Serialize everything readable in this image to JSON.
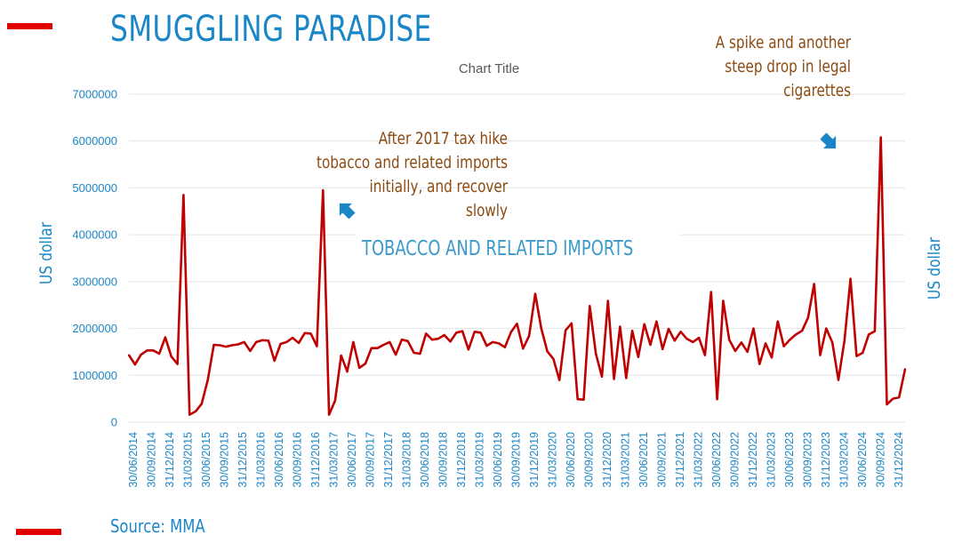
{
  "page": {
    "title": "SMUGGLING PARADISE",
    "source": "Source: MMA"
  },
  "colors": {
    "title": "#1a86c8",
    "line": "#c00000",
    "annotation": "#8b4a10",
    "series_label": "#3a9ac9",
    "accent_bars": "#e30000",
    "grid": "#e4e4e4"
  },
  "chart_data": {
    "type": "line",
    "title": "Chart Title",
    "ylabel": "US dollar",
    "ylabel_right": "US dollar",
    "ylim": [
      0,
      7000000
    ],
    "yticks": [
      0,
      1000000,
      2000000,
      3000000,
      4000000,
      5000000,
      6000000,
      7000000
    ],
    "grid": true,
    "x_ticks": [
      "30/06/2014",
      "30/09/2014",
      "31/12/2014",
      "31/03/2015",
      "30/06/2015",
      "30/09/2015",
      "31/12/2015",
      "31/03/2016",
      "30/06/2016",
      "30/09/2016",
      "31/12/2016",
      "31/03/2017",
      "30/06/2017",
      "30/09/2017",
      "31/12/2017",
      "31/03/2018",
      "30/06/2018",
      "30/09/2018",
      "31/12/2018",
      "31/03/2019",
      "30/06/2019",
      "30/09/2019",
      "31/12/2019",
      "31/03/2020",
      "30/06/2020",
      "30/09/2020",
      "31/12/2020",
      "31/03/2021",
      "30/06/2021",
      "30/09/2021",
      "31/12/2021",
      "31/03/2022",
      "30/06/2022",
      "30/09/2022",
      "31/12/2022",
      "31/03/2023",
      "30/06/2023",
      "30/09/2023",
      "31/12/2023",
      "31/03/2024",
      "30/06/2024",
      "30/09/2024",
      "31/12/2024"
    ],
    "series": [
      {
        "name": "TOBACCO AND RELATED IMPORTS",
        "values": [
          1430000,
          1230000,
          1440000,
          1530000,
          1530000,
          1460000,
          1810000,
          1400000,
          1240000,
          4850000,
          160000,
          230000,
          390000,
          900000,
          1650000,
          1640000,
          1610000,
          1640000,
          1660000,
          1710000,
          1520000,
          1710000,
          1750000,
          1740000,
          1310000,
          1670000,
          1710000,
          1800000,
          1690000,
          1900000,
          1890000,
          1620000,
          4950000,
          160000,
          460000,
          1420000,
          1080000,
          1710000,
          1160000,
          1250000,
          1580000,
          1580000,
          1650000,
          1710000,
          1440000,
          1760000,
          1730000,
          1480000,
          1460000,
          1890000,
          1760000,
          1780000,
          1860000,
          1720000,
          1910000,
          1940000,
          1550000,
          1930000,
          1910000,
          1630000,
          1710000,
          1680000,
          1600000,
          1920000,
          2100000,
          1570000,
          1840000,
          2740000,
          2000000,
          1510000,
          1350000,
          900000,
          1960000,
          2110000,
          490000,
          480000,
          2480000,
          1460000,
          970000,
          2590000,
          920000,
          2040000,
          940000,
          1950000,
          1390000,
          2090000,
          1650000,
          2150000,
          1560000,
          1990000,
          1740000,
          1930000,
          1780000,
          1710000,
          1800000,
          1430000,
          2780000,
          490000,
          2590000,
          1760000,
          1520000,
          1700000,
          1500000,
          2000000,
          1240000,
          1680000,
          1380000,
          2150000,
          1620000,
          1760000,
          1870000,
          1950000,
          2230000,
          2950000,
          1430000,
          2000000,
          1700000,
          900000,
          1740000,
          3060000,
          1410000,
          1480000,
          1870000,
          1940000,
          6080000,
          380000,
          500000,
          530000,
          1130000
        ]
      }
    ],
    "annotations": [
      {
        "lines": [
          "After 2017 tax hike",
          "tobacco and related imports",
          "initially, and recover",
          "slowly"
        ]
      },
      {
        "lines": [
          "A spike and another",
          "steep drop in legal",
          "cigarettes"
        ]
      }
    ]
  }
}
